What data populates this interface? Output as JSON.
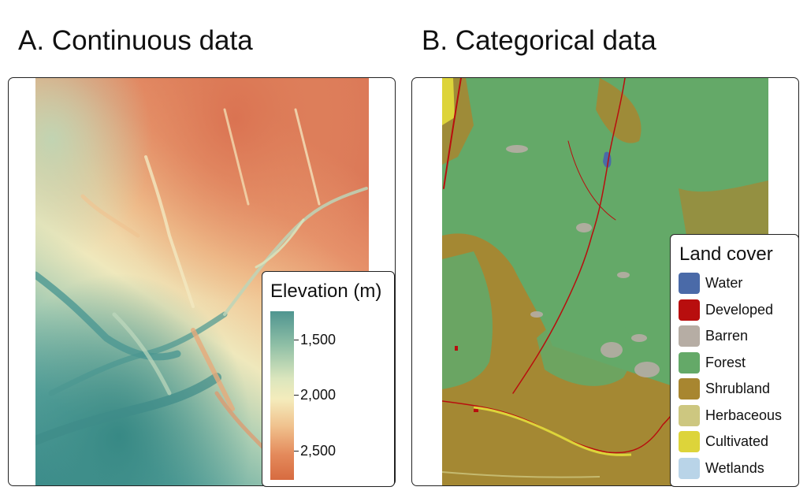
{
  "panelA": {
    "title": "A. Continuous data",
    "legend": {
      "title": "Elevation (m)",
      "ticks": [
        "1,500",
        "2,000",
        "2,500"
      ]
    }
  },
  "panelB": {
    "title": "B. Categorical data",
    "legend": {
      "title": "Land cover",
      "items": [
        {
          "label": "Water",
          "color": "#4a6aa8"
        },
        {
          "label": "Developed",
          "color": "#b80e0e"
        },
        {
          "label": "Barren",
          "color": "#b6ada4"
        },
        {
          "label": "Forest",
          "color": "#64a968"
        },
        {
          "label": "Shrubland",
          "color": "#a88630"
        },
        {
          "label": "Herbaceous",
          "color": "#cdc780"
        },
        {
          "label": "Cultivated",
          "color": "#ddd43a"
        },
        {
          "label": "Wetlands",
          "color": "#b9d4e8"
        }
      ]
    }
  }
}
